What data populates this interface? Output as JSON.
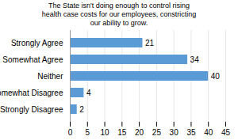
{
  "chart_data": {
    "type": "bar",
    "orientation": "horizontal",
    "title": "The State isn't doing enough to control rising\nhealth case costs for our employees, constricting\nour ability to grow.",
    "categories": [
      "Strongly Agree",
      "Somewhat Agree",
      "Neither",
      "Somewhat Disagree",
      "Strongly Disagree"
    ],
    "values": [
      21,
      34,
      40,
      4,
      2
    ],
    "color": "#5b9bd5",
    "xlim": [
      0,
      45
    ],
    "xticks": [
      0,
      5,
      10,
      15,
      20,
      25,
      30,
      35,
      40,
      45
    ],
    "grid": true,
    "data_labels": true
  }
}
